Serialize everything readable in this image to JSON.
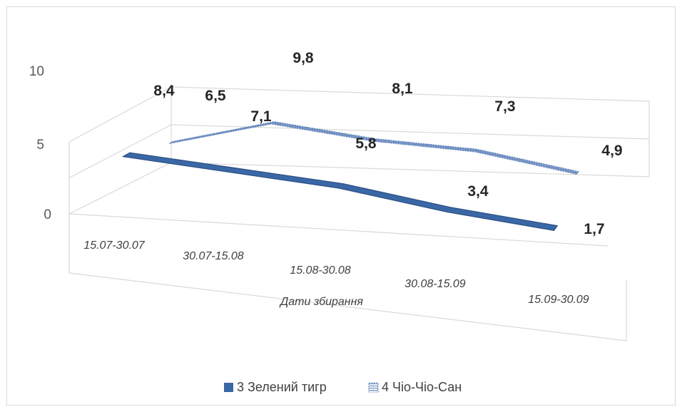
{
  "chart_data": {
    "type": "line",
    "style": "3d-ribbon",
    "categories": [
      "15.07-30.07",
      "30.07-15.08",
      "15.08-30.08",
      "30.08-15.09",
      "15.09-30.09"
    ],
    "series": [
      {
        "name": "3 Зелений тигр",
        "values": [
          8.4,
          7.1,
          5.8,
          3.4,
          1.7
        ],
        "color": "#3a67a6",
        "fill": "solid"
      },
      {
        "name": "4 Чіо-Чіо-Сан",
        "values": [
          6.5,
          9.8,
          8.1,
          7.3,
          4.9
        ],
        "color": "#5c80b8",
        "fill": "pattern"
      }
    ],
    "data_labels": [
      [
        "8,4",
        "7,1",
        "5,8",
        "3,4",
        "1,7"
      ],
      [
        "6,5",
        "9,8",
        "8,1",
        "7,3",
        "4,9"
      ]
    ],
    "y_ticks": [
      "0",
      "5",
      "10"
    ],
    "ylim": [
      0,
      10
    ],
    "xlabel": "Дати збирання",
    "ylabel": "",
    "grid": true,
    "legend_position": "bottom",
    "colors": {
      "grid": "#d9d9d9",
      "border": "#d9d9d9"
    }
  }
}
